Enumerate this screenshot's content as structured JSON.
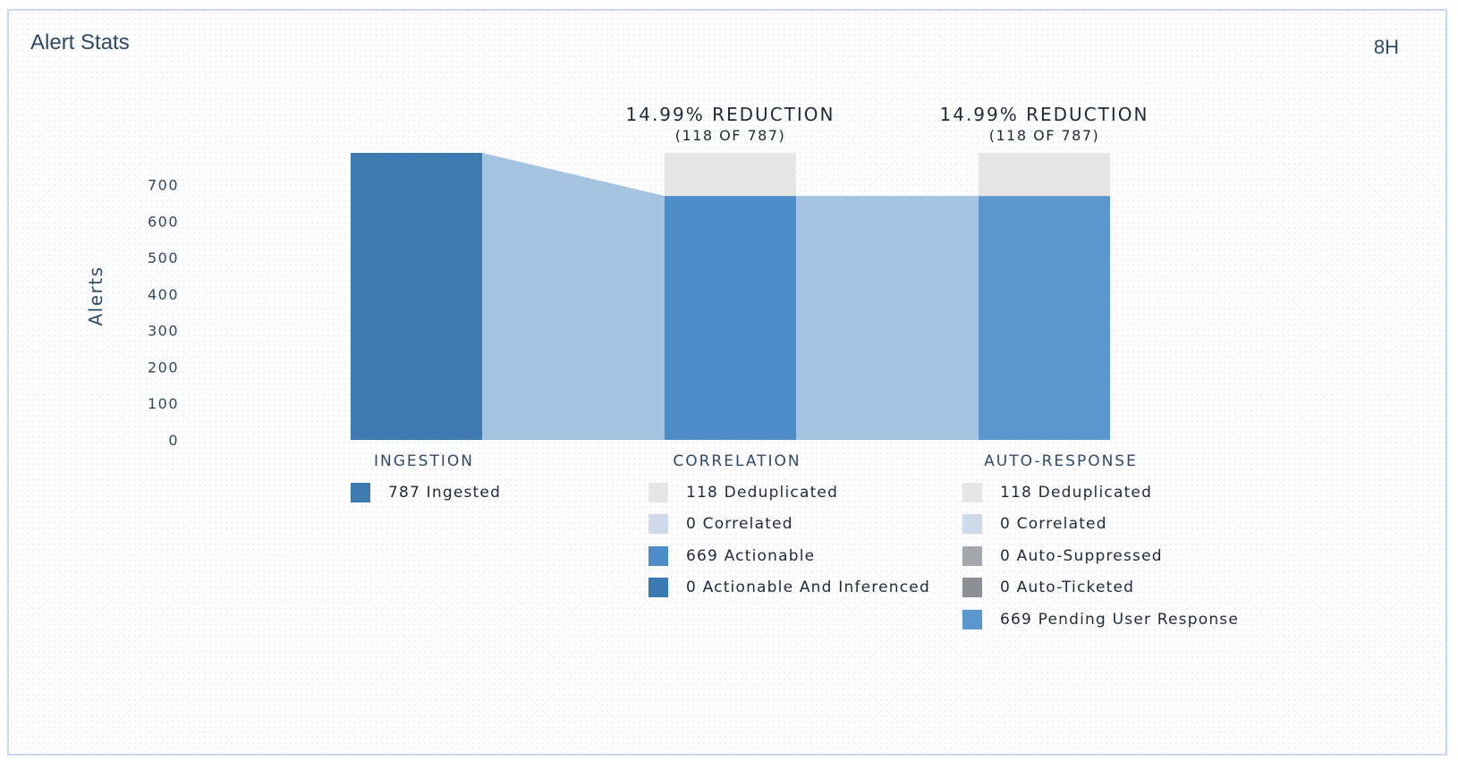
{
  "widget": {
    "title": "Alert Stats",
    "range_label": "8H"
  },
  "colors": {
    "ingested": "#3f7bb0",
    "actionable": "#4d8cc8",
    "pending": "#5c97cd",
    "flow": "#a5c4e2",
    "deduplicated": "#e6e6e6",
    "correlated": "#cfdbea",
    "auto_suppressed": "#a4a7ab",
    "auto_ticketed": "#8c8f93",
    "actionable_inferenced": "#3b79b3"
  },
  "chart_data": {
    "type": "bar",
    "ylabel": "Alerts",
    "ylim": [
      0,
      787
    ],
    "yticks": [
      0,
      100,
      200,
      300,
      400,
      500,
      600,
      700
    ],
    "categories": [
      "INGESTION",
      "CORRELATION",
      "AUTO-RESPONSE"
    ],
    "series": [
      {
        "name": "Ingested",
        "values": [
          787,
          0,
          0
        ]
      },
      {
        "name": "Actionable / Pending User Response",
        "values": [
          0,
          669,
          669
        ]
      },
      {
        "name": "Deduplicated",
        "values": [
          0,
          118,
          118
        ]
      }
    ],
    "annotations": [
      {
        "category": "CORRELATION",
        "text": "14.99% REDUCTION",
        "subtext": "(118 OF 787)"
      },
      {
        "category": "AUTO-RESPONSE",
        "text": "14.99% REDUCTION",
        "subtext": "(118 OF 787)"
      }
    ]
  },
  "legends": [
    {
      "stage": "INGESTION",
      "items": [
        {
          "label": "787 Ingested",
          "color": "#3f7bb0",
          "icon": "ingested-swatch"
        }
      ]
    },
    {
      "stage": "CORRELATION",
      "items": [
        {
          "label": "118 Deduplicated",
          "color": "#e6e6e6",
          "icon": "deduplicated-swatch"
        },
        {
          "label": "0 Correlated",
          "color": "#cfdbea",
          "icon": "correlated-swatch"
        },
        {
          "label": "669 Actionable",
          "color": "#4d8cc8",
          "icon": "actionable-swatch"
        },
        {
          "label": "0 Actionable And Inferenced",
          "color": "#3b79b3",
          "icon": "actionable-inferenced-swatch"
        }
      ]
    },
    {
      "stage": "AUTO-RESPONSE",
      "items": [
        {
          "label": "118 Deduplicated",
          "color": "#e6e6e6",
          "icon": "deduplicated-swatch"
        },
        {
          "label": "0 Correlated",
          "color": "#cfdbea",
          "icon": "correlated-swatch"
        },
        {
          "label": "0 Auto-Suppressed",
          "color": "#a4a7ab",
          "icon": "auto-suppressed-swatch"
        },
        {
          "label": "0 Auto-Ticketed",
          "color": "#8c8f93",
          "icon": "auto-ticketed-swatch"
        },
        {
          "label": "669 Pending User Response",
          "color": "#5c97cd",
          "icon": "pending-user-response-swatch"
        }
      ]
    }
  ]
}
